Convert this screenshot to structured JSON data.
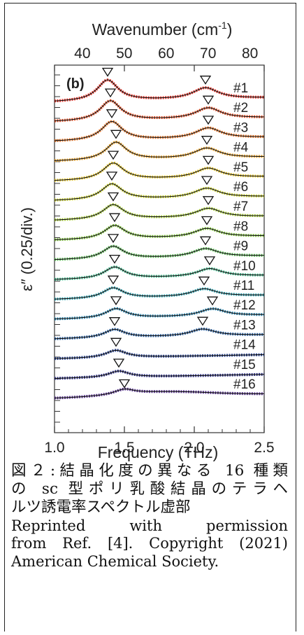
{
  "chart_data": {
    "type": "line",
    "panel_label": "(b)",
    "xlabel": "Frequency (THz)",
    "x_ticks": [
      "1.0",
      "1.5",
      "2.0",
      "2.5"
    ],
    "xlim": [
      1.0,
      2.5
    ],
    "top_xlabel": "Wavenumber (cm",
    "top_xlabel_sup": "-1",
    "top_xlabel_end": ")",
    "top_ticks": [
      "40",
      "50",
      "60",
      "70",
      "80"
    ],
    "top_tick_values": [
      40,
      50,
      60,
      70,
      80
    ],
    "ylabel": "ε″ (0.25/div.)",
    "colors": [
      "#e8342a",
      "#e9552b",
      "#ec7a2c",
      "#eba42d",
      "#e4c52c",
      "#c8cf31",
      "#a8cd39",
      "#82c43f",
      "#5eba58",
      "#43b78b",
      "#35a3b0",
      "#2e87b0",
      "#2c62a2",
      "#2b4591",
      "#33368a",
      "#5f3b94"
    ],
    "series": [
      {
        "name": "#1",
        "peaks": [
          1.38,
          2.08
        ],
        "marker_offsets": [
          0.0,
          0.0
        ]
      },
      {
        "name": "#2",
        "peaks": [
          1.4,
          2.1
        ],
        "marker_offsets": [
          0.0,
          0.0
        ]
      },
      {
        "name": "#3",
        "peaks": [
          1.41,
          2.1
        ],
        "marker_offsets": [
          0.0,
          0.0
        ]
      },
      {
        "name": "#4",
        "peaks": [
          1.44,
          2.09
        ],
        "marker_offsets": [
          0.0,
          0.0
        ]
      },
      {
        "name": "#5",
        "peaks": [
          1.42,
          2.1
        ],
        "marker_offsets": [
          0.0,
          0.0
        ]
      },
      {
        "name": "#6",
        "peaks": [
          1.41,
          2.09
        ],
        "marker_offsets": [
          0.0,
          0.0
        ]
      },
      {
        "name": "#7",
        "peaks": [
          1.42,
          2.1
        ],
        "marker_offsets": [
          0.0,
          0.0
        ]
      },
      {
        "name": "#8",
        "peaks": [
          1.43,
          2.09
        ],
        "marker_offsets": [
          0.0,
          0.0
        ]
      },
      {
        "name": "#9",
        "peaks": [
          1.42,
          2.08
        ],
        "marker_offsets": [
          0.0,
          0.0
        ]
      },
      {
        "name": "#10",
        "peaks": [
          1.43,
          2.11
        ],
        "marker_offsets": [
          0.0,
          0.0
        ]
      },
      {
        "name": "#11",
        "peaks": [
          1.42,
          2.07
        ],
        "marker_offsets": [
          0.0,
          0.0
        ]
      },
      {
        "name": "#12",
        "peaks": [
          1.44,
          2.13
        ],
        "marker_offsets": [
          0.0,
          0.0
        ]
      },
      {
        "name": "#13",
        "peaks": [
          1.43,
          2.06
        ],
        "marker_offsets": [
          0.0,
          0.0
        ]
      },
      {
        "name": "#14",
        "peaks": [
          1.44
        ],
        "marker_offsets": [
          0.0
        ]
      },
      {
        "name": "#15",
        "peaks": [
          1.46
        ],
        "marker_offsets": [
          0.0
        ]
      },
      {
        "name": "#16",
        "peaks": [
          1.5
        ],
        "marker_offsets": [
          0.0
        ]
      }
    ]
  },
  "caption": {
    "lines_jp": [
      "図２:結晶化度の異なる 16 種類",
      "の sc 型ポリ乳酸結晶のテラヘ",
      "ルツ誘電率スペクトル虚部"
    ],
    "lines_en": [
      "Reprinted with permission",
      "from Ref. [4]. Copyright (2021)",
      "American Chemical Society."
    ]
  }
}
